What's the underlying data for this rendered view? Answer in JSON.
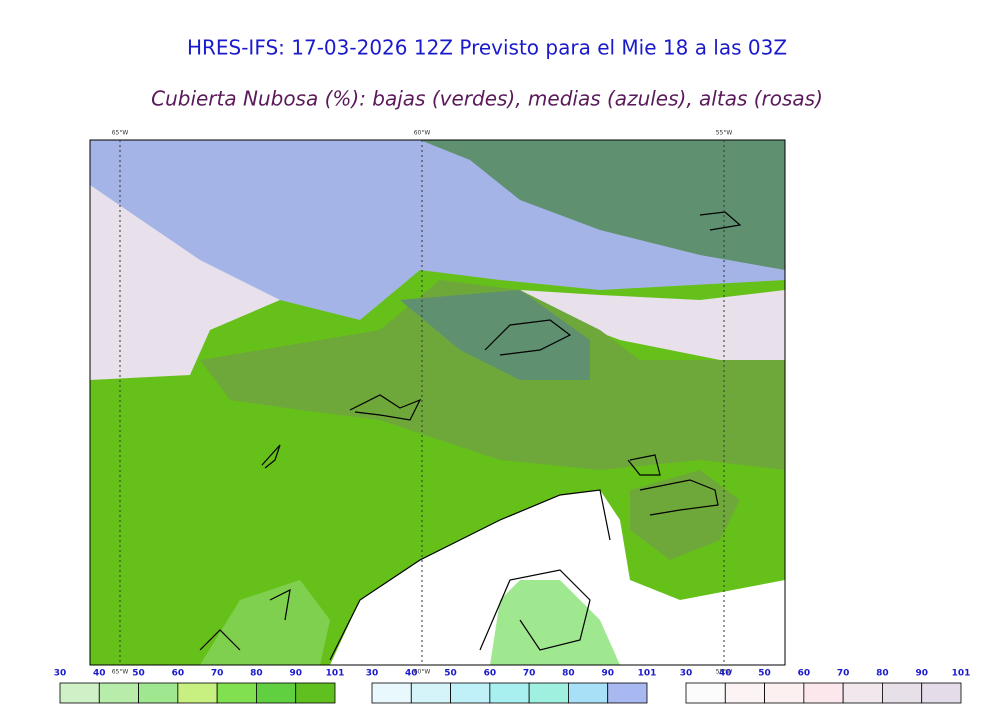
{
  "header": {
    "title": "HRES-IFS: 17-03-2026 12Z Previsto para el Mie 18 a las 03Z",
    "subtitle": "Cubierta Nubosa (%): bajas (verdes), medias (azules), altas (rosas)"
  },
  "map": {
    "lon_labels": [
      "65°W",
      "60°W",
      "55°W"
    ]
  },
  "legends": [
    {
      "ticks": [
        30,
        40,
        50,
        60,
        70,
        80,
        90,
        101
      ],
      "colors": [
        "#d0f0c8",
        "#b8ecaa",
        "#a0e890",
        "#c8f080",
        "#80e050",
        "#60d040",
        "#60c020"
      ]
    },
    {
      "ticks": [
        30,
        40,
        50,
        60,
        70,
        80,
        90,
        101
      ],
      "colors": [
        "#e8f8fc",
        "#d4f4fa",
        "#c0f0f8",
        "#a8f0f0",
        "#a0f0e0",
        "#a8e0f8",
        "#a8b8f0"
      ]
    },
    {
      "ticks": [
        30,
        40,
        50,
        60,
        70,
        80,
        90,
        101
      ],
      "colors": [
        "#fcfcfc",
        "#fcf4f4",
        "#fcf0f0",
        "#fce8ec",
        "#f0e8ec",
        "#e8e0e8",
        "#e4dce8"
      ]
    }
  ]
}
